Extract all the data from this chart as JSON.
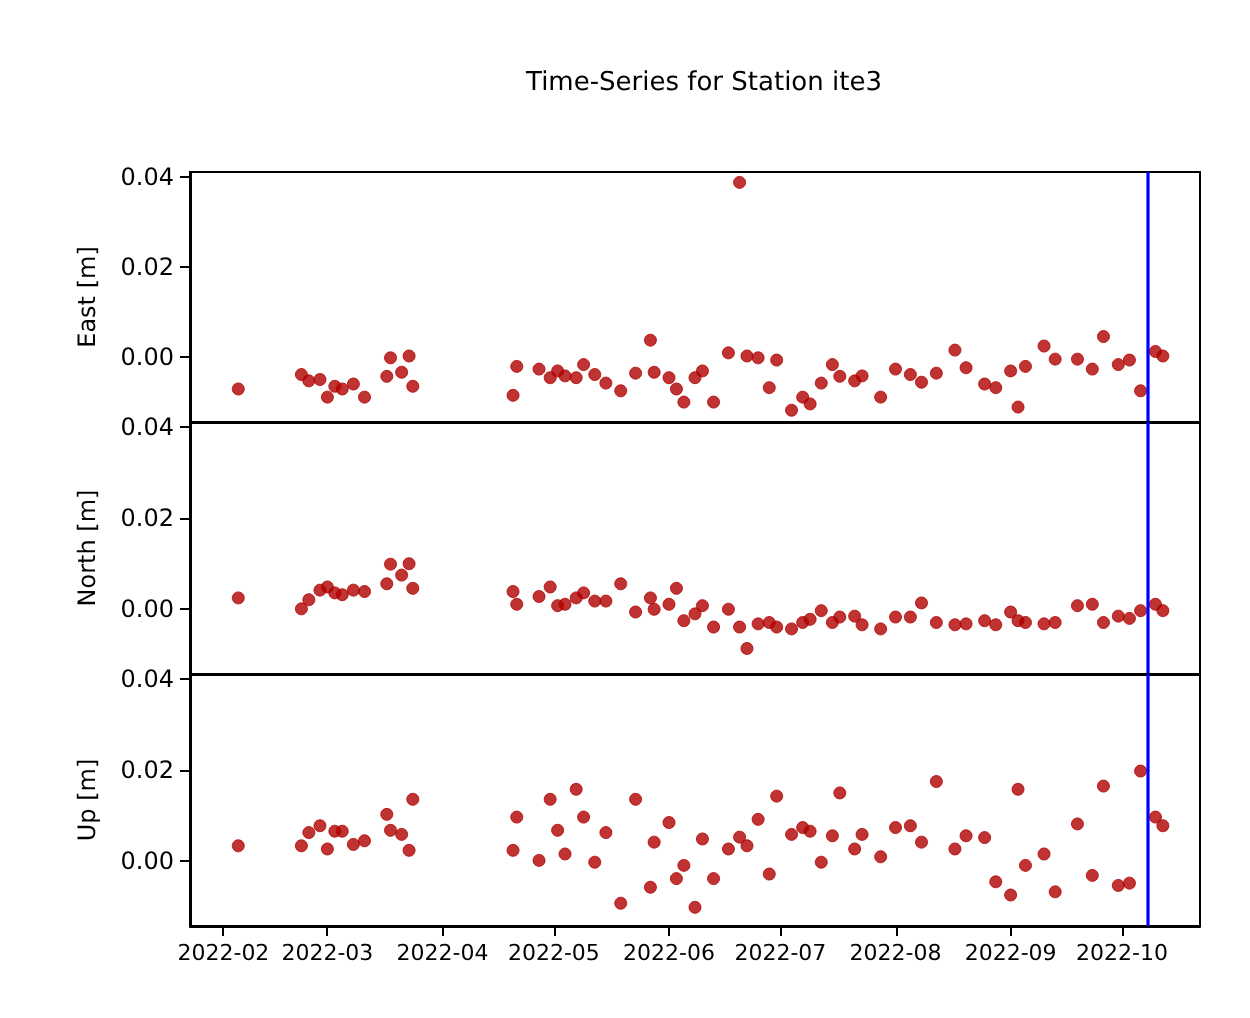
{
  "chart_data": [
    {
      "type": "scatter",
      "title": "Time-Series for Station ite3",
      "ylabel": "East [m]",
      "marker": "circle",
      "tick_labels": "y",
      "xlim": [
        "2022-01-23",
        "2022-10-22"
      ],
      "xticks": [
        "2022-02",
        "2022-03",
        "2022-04",
        "2022-05",
        "2022-06",
        "2022-07",
        "2022-08",
        "2022-09",
        "2022-10"
      ],
      "ylim": [
        -0.0143,
        0.041
      ],
      "yticks": [
        {
          "value": 0,
          "label": "0.00"
        },
        {
          "value": 0.02,
          "label": "0.02"
        },
        {
          "value": 0.04,
          "label": "0.04"
        }
      ],
      "ref_lines": [
        {
          "axis": "x",
          "value": "2022-10-08",
          "color": "#0000ff"
        }
      ],
      "x": [
        "2022-02-05",
        "2022-02-22",
        "2022-02-24",
        "2022-02-27",
        "2022-03-01",
        "2022-03-03",
        "2022-03-05",
        "2022-03-08",
        "2022-03-11",
        "2022-03-17",
        "2022-03-18",
        "2022-03-21",
        "2022-03-23",
        "2022-03-24",
        "2022-04-20",
        "2022-04-21",
        "2022-04-27",
        "2022-04-30",
        "2022-05-02",
        "2022-05-04",
        "2022-05-07",
        "2022-05-09",
        "2022-05-12",
        "2022-05-15",
        "2022-05-19",
        "2022-05-23",
        "2022-05-27",
        "2022-05-28",
        "2022-06-01",
        "2022-06-03",
        "2022-06-05",
        "2022-06-08",
        "2022-06-10",
        "2022-06-13",
        "2022-06-17",
        "2022-06-20",
        "2022-06-22",
        "2022-06-25",
        "2022-06-28",
        "2022-06-30",
        "2022-07-04",
        "2022-07-07",
        "2022-07-09",
        "2022-07-12",
        "2022-07-15",
        "2022-07-17",
        "2022-07-21",
        "2022-07-23",
        "2022-07-28",
        "2022-08-01",
        "2022-08-05",
        "2022-08-08",
        "2022-08-12",
        "2022-08-17",
        "2022-08-20",
        "2022-08-25",
        "2022-08-28",
        "2022-09-01",
        "2022-09-03",
        "2022-09-05",
        "2022-09-10",
        "2022-09-13",
        "2022-09-19",
        "2022-09-23",
        "2022-09-26",
        "2022-09-30",
        "2022-10-03",
        "2022-10-06",
        "2022-10-10",
        "2022-10-12"
      ],
      "series": [
        {
          "color": "#b00000",
          "values": [
            -0.007,
            -0.0038,
            -0.0052,
            -0.0049,
            -0.0088,
            -0.0064,
            -0.007,
            -0.0059,
            -0.0088,
            -0.0042,
            -0.0001,
            -0.0033,
            0.0003,
            -0.0064,
            -0.0084,
            -0.002,
            -0.0026,
            -0.0045,
            -0.003,
            -0.0041,
            -0.0045,
            -0.0016,
            -0.0038,
            -0.0057,
            -0.0074,
            -0.0035,
            0.0038,
            -0.0033,
            -0.0045,
            -0.007,
            -0.0099,
            -0.0045,
            -0.003,
            -0.0099,
            0.001,
            0.0387,
            0.0003,
            -0.0001,
            -0.0067,
            -0.0006,
            -0.0117,
            -0.0088,
            -0.0103,
            -0.0057,
            -0.0016,
            -0.0042,
            -0.0052,
            -0.0041,
            -0.0088,
            -0.0026,
            -0.0038,
            -0.0055,
            -0.0035,
            0.0016,
            -0.0023,
            -0.0059,
            -0.0067,
            -0.003,
            -0.011,
            -0.002,
            0.0025,
            -0.0004,
            -0.0004,
            -0.0026,
            0.0046,
            -0.0016,
            -0.0006,
            -0.0074,
            0.0013,
            0.0003
          ]
        }
      ]
    },
    {
      "type": "scatter",
      "ylabel": "North [m]",
      "marker": "circle",
      "tick_labels": "y",
      "xlim": [
        "2022-01-23",
        "2022-10-22"
      ],
      "xticks": [
        "2022-02",
        "2022-03",
        "2022-04",
        "2022-05",
        "2022-06",
        "2022-07",
        "2022-08",
        "2022-09",
        "2022-10"
      ],
      "ylim": [
        -0.0143,
        0.041
      ],
      "yticks": [
        {
          "value": 0,
          "label": "0.00"
        },
        {
          "value": 0.02,
          "label": "0.02"
        },
        {
          "value": 0.04,
          "label": "0.04"
        }
      ],
      "ref_lines": [
        {
          "axis": "x",
          "value": "2022-10-08",
          "color": "#0000ff"
        }
      ],
      "x": [
        "2022-02-05",
        "2022-02-22",
        "2022-02-24",
        "2022-02-27",
        "2022-03-01",
        "2022-03-03",
        "2022-03-05",
        "2022-03-08",
        "2022-03-11",
        "2022-03-17",
        "2022-03-18",
        "2022-03-21",
        "2022-03-23",
        "2022-03-24",
        "2022-04-20",
        "2022-04-21",
        "2022-04-27",
        "2022-04-30",
        "2022-05-02",
        "2022-05-04",
        "2022-05-07",
        "2022-05-09",
        "2022-05-12",
        "2022-05-15",
        "2022-05-19",
        "2022-05-23",
        "2022-05-27",
        "2022-05-28",
        "2022-06-01",
        "2022-06-03",
        "2022-06-05",
        "2022-06-08",
        "2022-06-10",
        "2022-06-13",
        "2022-06-17",
        "2022-06-20",
        "2022-06-22",
        "2022-06-25",
        "2022-06-28",
        "2022-06-30",
        "2022-07-04",
        "2022-07-07",
        "2022-07-09",
        "2022-07-12",
        "2022-07-15",
        "2022-07-17",
        "2022-07-21",
        "2022-07-23",
        "2022-07-28",
        "2022-08-01",
        "2022-08-05",
        "2022-08-08",
        "2022-08-12",
        "2022-08-17",
        "2022-08-20",
        "2022-08-25",
        "2022-08-28",
        "2022-09-01",
        "2022-09-03",
        "2022-09-05",
        "2022-09-10",
        "2022-09-13",
        "2022-09-19",
        "2022-09-23",
        "2022-09-26",
        "2022-09-30",
        "2022-10-03",
        "2022-10-06",
        "2022-10-10",
        "2022-10-12"
      ],
      "series": [
        {
          "color": "#b00000",
          "values": [
            0.0024,
            0.0,
            0.002,
            0.0041,
            0.0048,
            0.0035,
            0.0031,
            0.0041,
            0.0038,
            0.0055,
            0.0098,
            0.0074,
            0.0099,
            0.0045,
            0.0038,
            0.001,
            0.0027,
            0.0048,
            0.0007,
            0.001,
            0.0024,
            0.0035,
            0.0017,
            0.0017,
            0.0055,
            -0.0007,
            0.0024,
            -0.0001,
            0.001,
            0.0045,
            -0.0026,
            -0.0011,
            0.0007,
            -0.004,
            -0.0001,
            -0.004,
            -0.0087,
            -0.0033,
            -0.003,
            -0.004,
            -0.0044,
            -0.003,
            -0.0023,
            -0.0004,
            -0.003,
            -0.0018,
            -0.0016,
            -0.0035,
            -0.0044,
            -0.0018,
            -0.0018,
            0.0013,
            -0.003,
            -0.0035,
            -0.0033,
            -0.0026,
            -0.0035,
            -0.0007,
            -0.0026,
            -0.003,
            -0.0033,
            -0.003,
            0.0007,
            0.001,
            -0.003,
            -0.0016,
            -0.0021,
            -0.0004,
            0.001,
            -0.0004
          ]
        }
      ]
    },
    {
      "type": "scatter",
      "ylabel": "Up [m]",
      "marker": "circle",
      "xlim": [
        "2022-01-23",
        "2022-10-22"
      ],
      "xticks": [
        "2022-02",
        "2022-03",
        "2022-04",
        "2022-05",
        "2022-06",
        "2022-07",
        "2022-08",
        "2022-09",
        "2022-10"
      ],
      "ylim": [
        -0.0143,
        0.041
      ],
      "yticks": [
        {
          "value": 0,
          "label": "0.00"
        },
        {
          "value": 0.02,
          "label": "0.02"
        },
        {
          "value": 0.04,
          "label": "0.04"
        }
      ],
      "ref_lines": [
        {
          "axis": "x",
          "value": "2022-10-08",
          "color": "#0000ff"
        }
      ],
      "x": [
        "2022-02-05",
        "2022-02-22",
        "2022-02-24",
        "2022-02-27",
        "2022-03-01",
        "2022-03-03",
        "2022-03-05",
        "2022-03-08",
        "2022-03-11",
        "2022-03-17",
        "2022-03-18",
        "2022-03-21",
        "2022-03-23",
        "2022-03-24",
        "2022-04-20",
        "2022-04-21",
        "2022-04-27",
        "2022-04-30",
        "2022-05-02",
        "2022-05-04",
        "2022-05-07",
        "2022-05-09",
        "2022-05-12",
        "2022-05-15",
        "2022-05-19",
        "2022-05-23",
        "2022-05-27",
        "2022-05-28",
        "2022-06-01",
        "2022-06-03",
        "2022-06-05",
        "2022-06-08",
        "2022-06-10",
        "2022-06-13",
        "2022-06-17",
        "2022-06-20",
        "2022-06-22",
        "2022-06-25",
        "2022-06-28",
        "2022-06-30",
        "2022-07-04",
        "2022-07-07",
        "2022-07-09",
        "2022-07-12",
        "2022-07-15",
        "2022-07-17",
        "2022-07-21",
        "2022-07-23",
        "2022-07-28",
        "2022-08-01",
        "2022-08-05",
        "2022-08-08",
        "2022-08-12",
        "2022-08-17",
        "2022-08-20",
        "2022-08-25",
        "2022-08-28",
        "2022-09-01",
        "2022-09-03",
        "2022-09-05",
        "2022-09-10",
        "2022-09-13",
        "2022-09-19",
        "2022-09-23",
        "2022-09-26",
        "2022-09-30",
        "2022-10-03",
        "2022-10-06",
        "2022-10-10",
        "2022-10-12"
      ],
      "series": [
        {
          "color": "#b00000",
          "values": [
            0.0033,
            0.0033,
            0.0062,
            0.0077,
            0.0026,
            0.0065,
            0.0065,
            0.0036,
            0.0044,
            0.0102,
            0.0067,
            0.0058,
            0.0023,
            0.0135,
            0.0023,
            0.0096,
            0.0001,
            0.0135,
            0.0067,
            0.0015,
            0.0157,
            0.0096,
            -0.0003,
            0.0062,
            -0.0093,
            0.0135,
            -0.0058,
            0.0041,
            0.0084,
            -0.0039,
            -0.001,
            -0.0102,
            0.0048,
            -0.0039,
            0.0026,
            0.0052,
            0.0033,
            0.0091,
            -0.0029,
            0.0142,
            0.0058,
            0.0073,
            0.0065,
            -0.0003,
            0.0055,
            0.0149,
            0.0026,
            0.0058,
            0.0009,
            0.0073,
            0.0077,
            0.0041,
            0.0174,
            0.0026,
            0.0055,
            0.0051,
            -0.0046,
            -0.0075,
            0.0157,
            -0.001,
            0.0015,
            -0.0068,
            0.0081,
            -0.0032,
            0.0164,
            -0.0054,
            -0.0049,
            0.0197,
            0.0096,
            0.0077
          ]
        }
      ]
    }
  ]
}
